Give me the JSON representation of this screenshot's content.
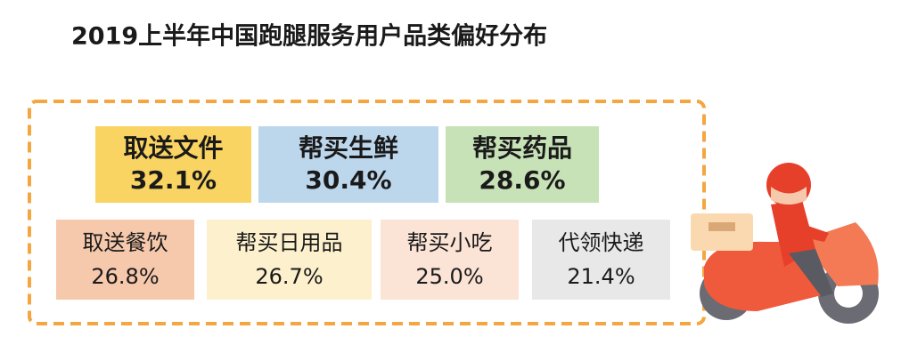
{
  "chart_data": {
    "type": "tile",
    "title": "2019上半年中国跑腿服务用户品类偏好分布",
    "categories": [
      "取送文件",
      "帮买生鲜",
      "帮买药品",
      "取送餐饮",
      "帮买日用品",
      "帮买小吃",
      "代领快递"
    ],
    "values": [
      32.1,
      30.4,
      28.6,
      26.8,
      26.7,
      25.0,
      21.4
    ],
    "value_labels": [
      "32.1%",
      "30.4%",
      "28.6%",
      "26.8%",
      "26.7%",
      "25.0%",
      "21.4%"
    ],
    "colors": [
      "#f9d462",
      "#bcd6ec",
      "#c8e2b8",
      "#f6c9ac",
      "#fdf0cc",
      "#fbe3d6",
      "#e8e8e8"
    ],
    "border_color": "#f4a640"
  }
}
